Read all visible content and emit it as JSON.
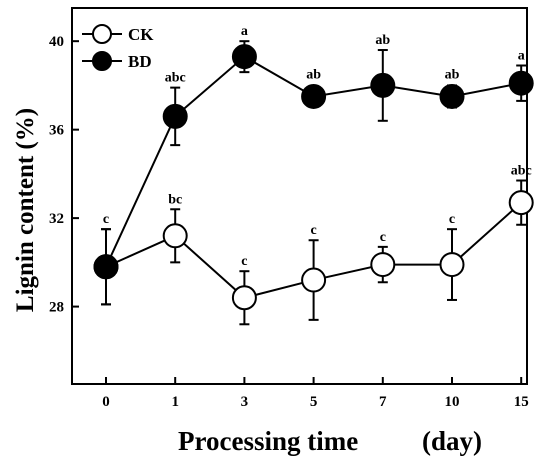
{
  "chart_data": {
    "type": "line",
    "xlabel": "Processing time",
    "xlabel_unit": "(day)",
    "ylabel": "Lignin content (%)",
    "ylim": [
      24.5,
      41.5
    ],
    "yticks": [
      28,
      32,
      36,
      40
    ],
    "categories": [
      "0",
      "1",
      "3",
      "5",
      "7",
      "10",
      "15"
    ],
    "legend_position": "top-left",
    "series": [
      {
        "name": "CK",
        "marker": "open-circle",
        "values": [
          29.8,
          31.2,
          28.4,
          29.2,
          29.9,
          29.9,
          32.7
        ],
        "errors": [
          1.7,
          1.2,
          1.2,
          1.8,
          0.8,
          1.6,
          1.0
        ],
        "labels": [
          "c",
          "bc",
          "c",
          "c",
          "c",
          "c",
          "abc"
        ]
      },
      {
        "name": "BD",
        "marker": "filled-circle",
        "values": [
          29.8,
          36.6,
          39.3,
          37.5,
          38.0,
          37.5,
          38.1
        ],
        "errors": [
          1.7,
          1.3,
          0.7,
          0.0,
          1.6,
          0.5,
          0.8
        ],
        "labels": [
          "",
          "abc",
          "a",
          "ab",
          "ab",
          "ab",
          "a"
        ]
      }
    ]
  }
}
